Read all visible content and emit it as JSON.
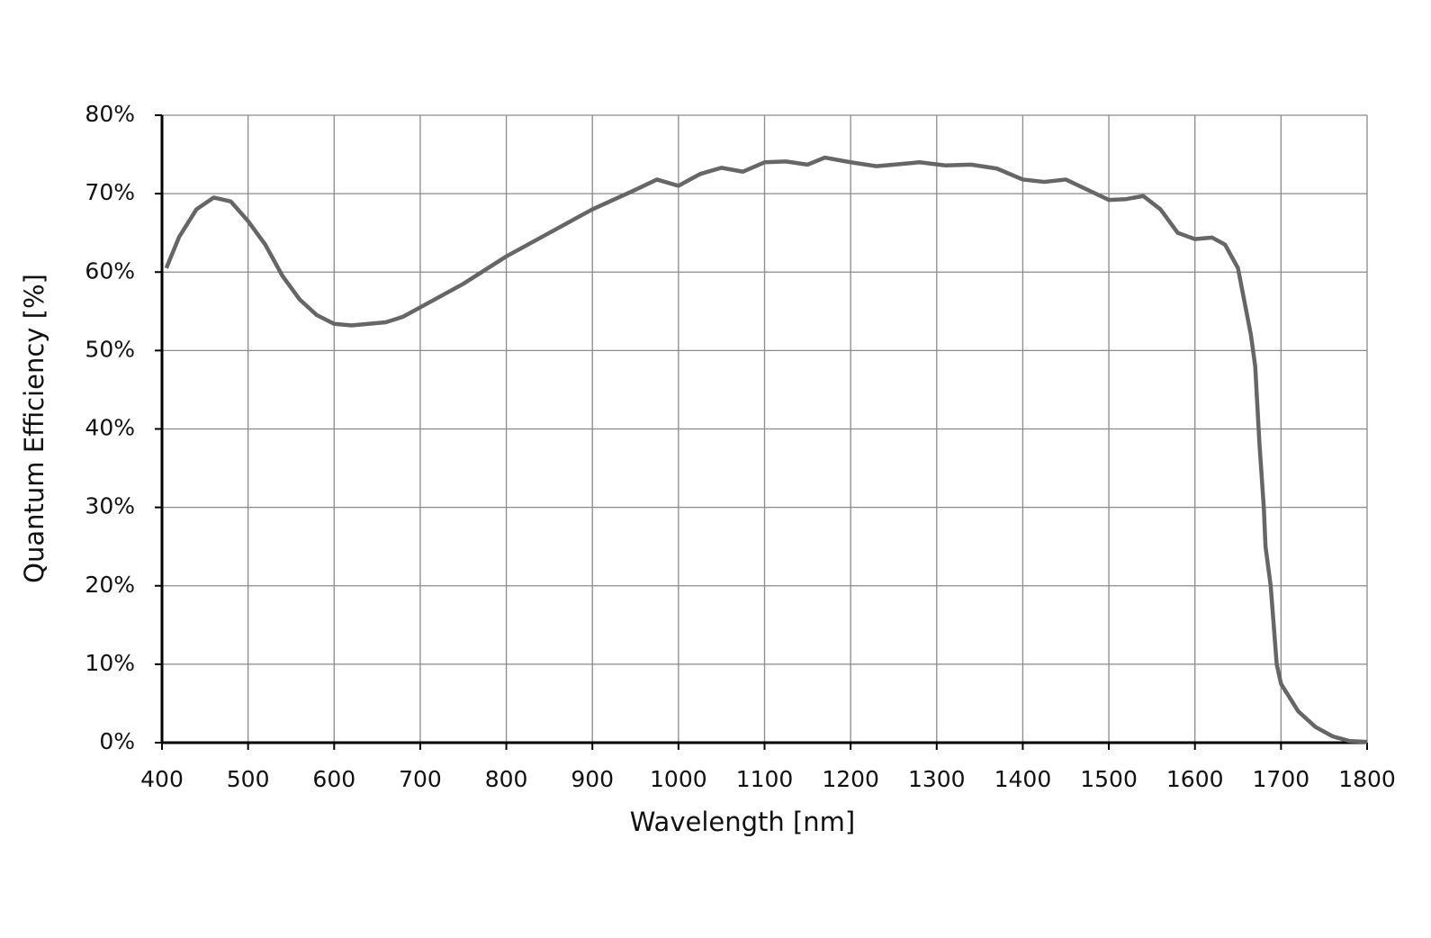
{
  "chart_data": {
    "type": "line",
    "x_label": "Wavelength [nm]",
    "y_label": "Quantum Efficiency [%]",
    "x": [
      405,
      420,
      440,
      460,
      480,
      500,
      520,
      540,
      560,
      580,
      600,
      620,
      660,
      680,
      700,
      750,
      800,
      850,
      900,
      950,
      975,
      1000,
      1025,
      1050,
      1075,
      1100,
      1125,
      1150,
      1170,
      1200,
      1230,
      1280,
      1310,
      1340,
      1370,
      1400,
      1425,
      1450,
      1475,
      1500,
      1520,
      1540,
      1560,
      1580,
      1600,
      1620,
      1635,
      1650,
      1665,
      1670,
      1675,
      1680,
      1682,
      1688,
      1695,
      1700,
      1720,
      1740,
      1760,
      1780,
      1800
    ],
    "series": [
      {
        "color": "#666666",
        "values": [
          60.5,
          64.5,
          68,
          69.5,
          69,
          66.5,
          63.5,
          59.5,
          56.5,
          54.5,
          53.4,
          53.2,
          53.6,
          54.3,
          55.5,
          58.5,
          62,
          65,
          68,
          70.5,
          71.8,
          71,
          72.5,
          73.3,
          72.8,
          74,
          74.1,
          73.7,
          74.6,
          74,
          73.5,
          74,
          73.6,
          73.7,
          73.2,
          71.8,
          71.5,
          71.8,
          70.5,
          69.2,
          69.3,
          69.7,
          68,
          65,
          64.2,
          64.4,
          63.5,
          60.5,
          52,
          48,
          38,
          30,
          25,
          20,
          10,
          7.5,
          4,
          2,
          0.8,
          0.2,
          0.1
        ]
      }
    ],
    "xlim": [
      400,
      1800
    ],
    "xticks": [
      400,
      500,
      600,
      700,
      800,
      900,
      1000,
      1100,
      1200,
      1300,
      1400,
      1500,
      1600,
      1700,
      1800
    ],
    "ylim": [
      0,
      80
    ],
    "yticks": [
      {
        "value": 0,
        "label": "0%"
      },
      {
        "value": 10,
        "label": "10%"
      },
      {
        "value": 20,
        "label": "20%"
      },
      {
        "value": 30,
        "label": "30%"
      },
      {
        "value": 40,
        "label": "40%"
      },
      {
        "value": 50,
        "label": "50%"
      },
      {
        "value": 60,
        "label": "60%"
      },
      {
        "value": 70,
        "label": "70%"
      },
      {
        "value": 80,
        "label": "80%"
      }
    ],
    "grid": true
  }
}
